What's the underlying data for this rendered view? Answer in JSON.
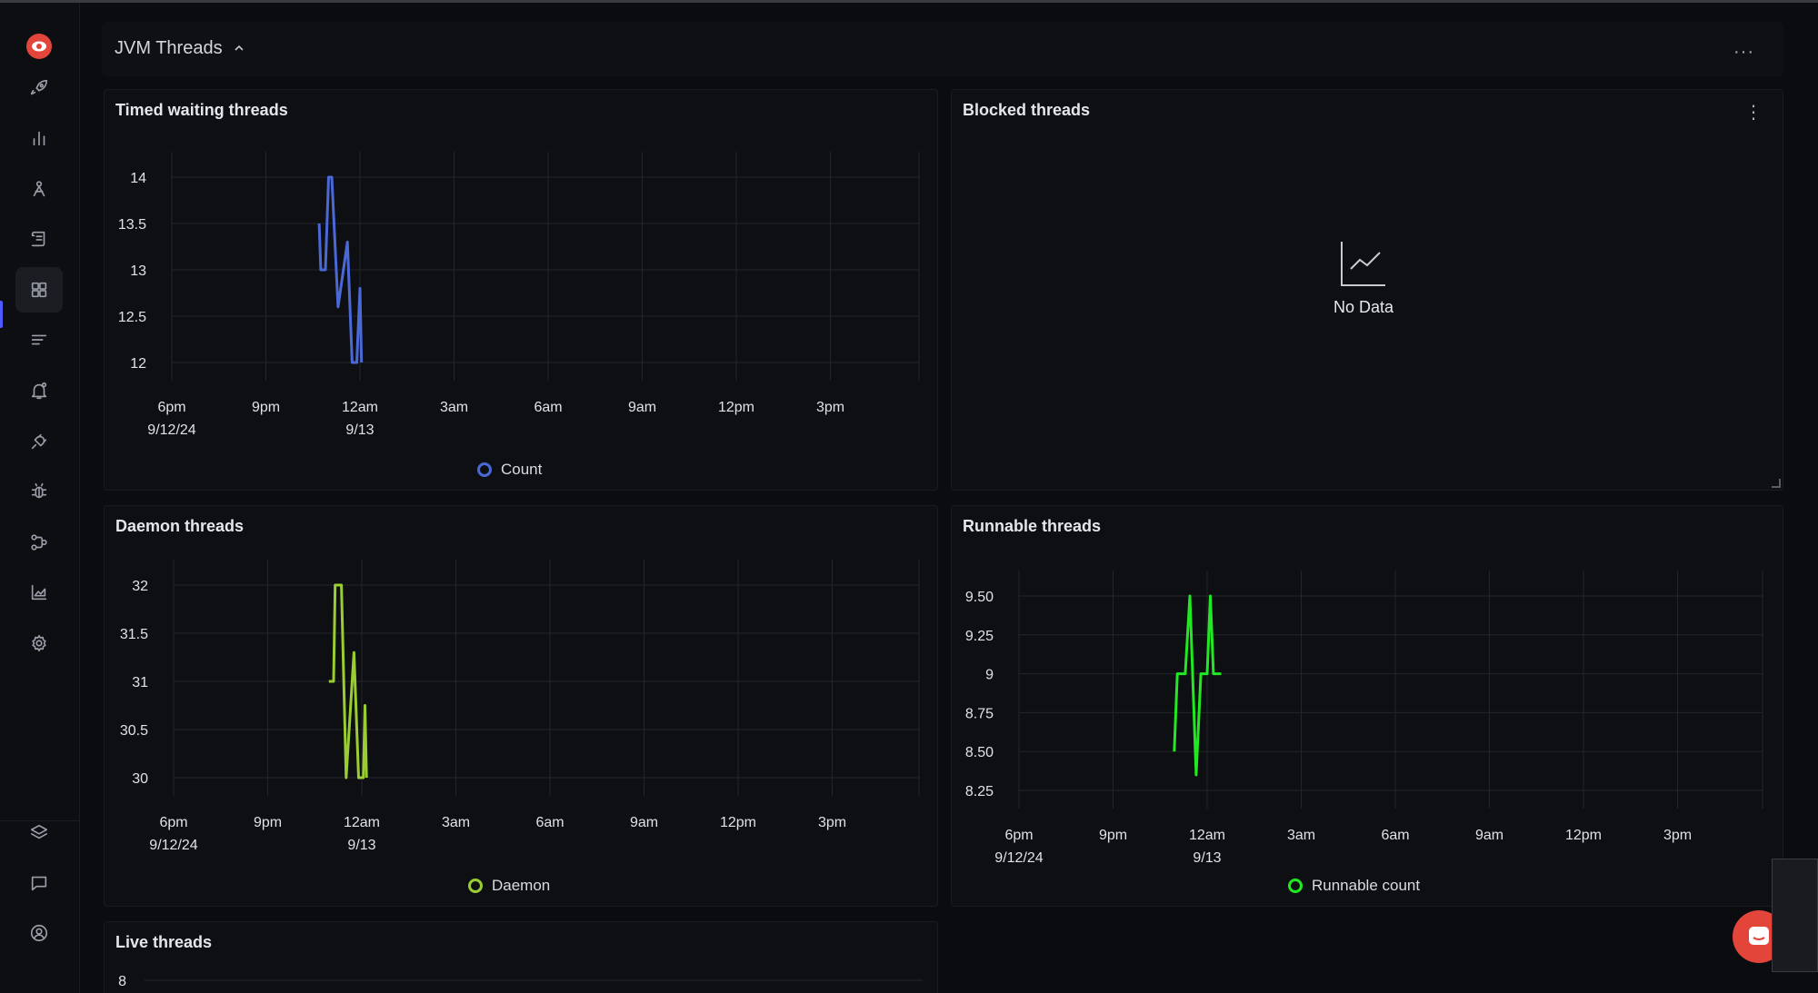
{
  "header": {
    "title": "JVM Threads",
    "more_label": "···"
  },
  "sidebar": {
    "top_items": [
      {
        "icon": "rocket-icon"
      },
      {
        "icon": "bar-chart-icon"
      },
      {
        "icon": "traces-icon"
      },
      {
        "icon": "logs-icon"
      },
      {
        "icon": "dashboard-grid-icon",
        "active": true
      },
      {
        "icon": "list-icon"
      },
      {
        "icon": "alert-bell-icon"
      },
      {
        "icon": "integrations-plug-icon"
      },
      {
        "icon": "bug-icon"
      },
      {
        "icon": "pipelines-icon"
      },
      {
        "icon": "area-chart-icon"
      },
      {
        "icon": "gear-icon"
      }
    ],
    "bottom_items": [
      {
        "icon": "layers-icon"
      },
      {
        "icon": "chat-icon"
      },
      {
        "icon": "user-circle-icon"
      }
    ]
  },
  "panels": {
    "timed_waiting": {
      "title": "Timed waiting threads",
      "legend": "Count",
      "color": "#4a69d6"
    },
    "blocked": {
      "title": "Blocked threads",
      "no_data": "No Data",
      "menu": "⋮"
    },
    "daemon": {
      "title": "Daemon threads",
      "legend": "Daemon",
      "color": "#9acd32"
    },
    "runnable": {
      "title": "Runnable threads",
      "legend": "Runnable count",
      "color": "#22e822"
    },
    "live": {
      "title": "Live threads",
      "first_tick": "8"
    }
  },
  "chart_data": [
    {
      "type": "line",
      "title": "Timed waiting threads",
      "x_ticks": [
        "6pm",
        "9pm",
        "12am",
        "3am",
        "6am",
        "9am",
        "12pm",
        "3pm"
      ],
      "x_subticks": {
        "6pm": "9/12/24",
        "12am": "9/13"
      },
      "y_ticks": [
        "14",
        "13.5",
        "13",
        "12.5",
        "12"
      ],
      "ylim": [
        12,
        14
      ],
      "series": [
        {
          "name": "Count",
          "color": "#4a69d6",
          "points": [
            [
              22.7,
              13.5
            ],
            [
              22.75,
              13
            ],
            [
              22.9,
              13
            ],
            [
              23.0,
              14
            ],
            [
              23.1,
              14
            ],
            [
              23.3,
              12.6
            ],
            [
              23.6,
              13.3
            ],
            [
              23.75,
              12
            ],
            [
              23.9,
              12
            ],
            [
              24.0,
              12.8
            ],
            [
              24.05,
              12
            ]
          ]
        }
      ]
    },
    {
      "type": "line",
      "title": "Blocked threads",
      "series": []
    },
    {
      "type": "line",
      "title": "Daemon threads",
      "x_ticks": [
        "6pm",
        "9pm",
        "12am",
        "3am",
        "6am",
        "9am",
        "12pm",
        "3pm"
      ],
      "x_subticks": {
        "6pm": "9/12/24",
        "12am": "9/13"
      },
      "y_ticks": [
        "32",
        "31.5",
        "31",
        "30.5",
        "30"
      ],
      "ylim": [
        30,
        32
      ],
      "series": [
        {
          "name": "Daemon",
          "color": "#9acd32",
          "points": [
            [
              22.95,
              31
            ],
            [
              23.1,
              31
            ],
            [
              23.15,
              32
            ],
            [
              23.35,
              32
            ],
            [
              23.5,
              30
            ],
            [
              23.75,
              31.3
            ],
            [
              23.9,
              30
            ],
            [
              24.05,
              30
            ],
            [
              24.1,
              30.75
            ],
            [
              24.15,
              30
            ]
          ]
        }
      ]
    },
    {
      "type": "line",
      "title": "Runnable threads",
      "x_ticks": [
        "6pm",
        "9pm",
        "12am",
        "3am",
        "6am",
        "9am",
        "12pm",
        "3pm"
      ],
      "x_subticks": {
        "6pm": "9/12/24",
        "12am": "9/13"
      },
      "y_ticks": [
        "9.50",
        "9.25",
        "9",
        "8.75",
        "8.50",
        "8.25"
      ],
      "ylim": [
        8.25,
        9.5
      ],
      "series": [
        {
          "name": "Runnable count",
          "color": "#22e822",
          "points": [
            [
              22.95,
              8.5
            ],
            [
              23.05,
              9
            ],
            [
              23.3,
              9
            ],
            [
              23.45,
              9.5
            ],
            [
              23.65,
              8.35
            ],
            [
              23.8,
              9
            ],
            [
              24.0,
              9
            ],
            [
              24.1,
              9.5
            ],
            [
              24.2,
              9
            ],
            [
              24.45,
              9
            ]
          ]
        }
      ]
    }
  ]
}
